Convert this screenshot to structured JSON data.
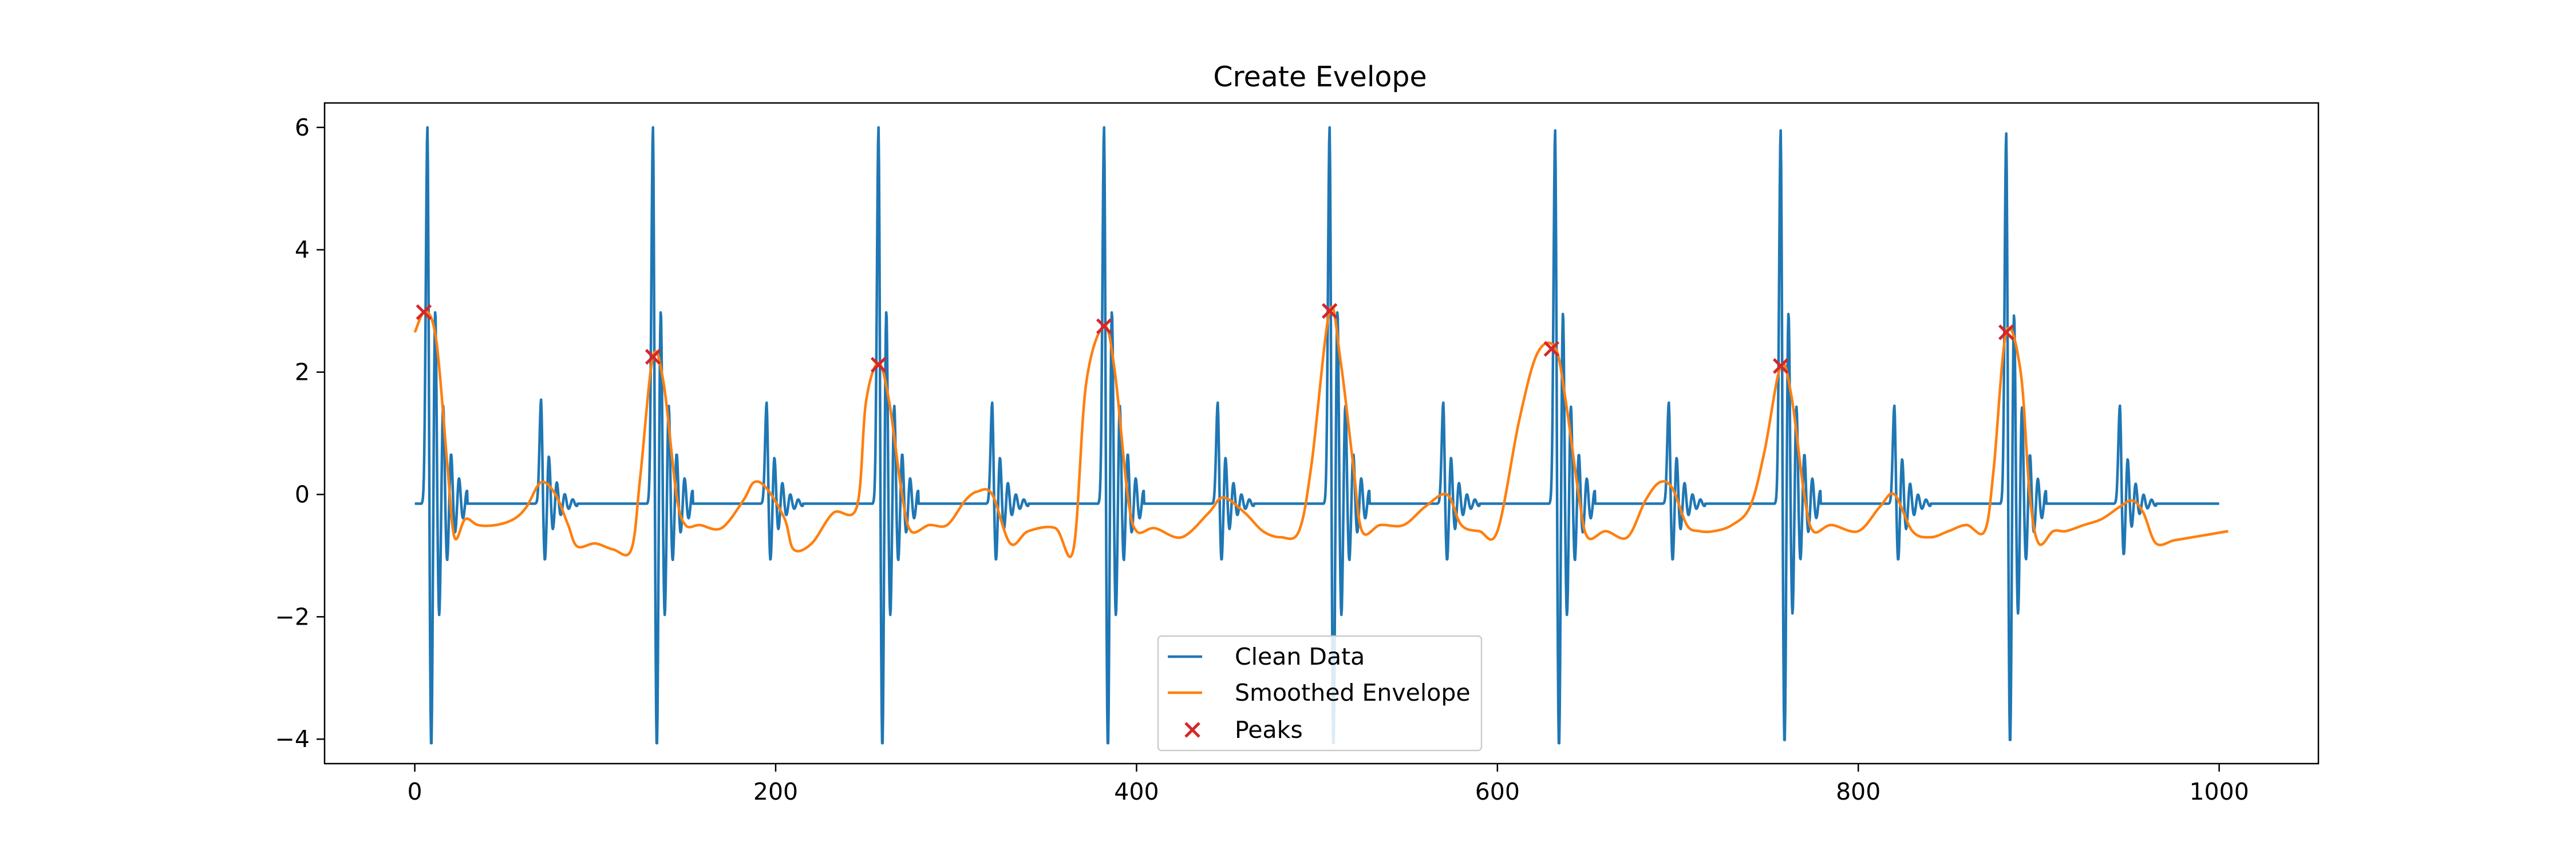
{
  "chart_data": {
    "type": "line",
    "title": "Create Evelope",
    "xlabel": "",
    "ylabel": "",
    "xlim": [
      -50,
      1055
    ],
    "ylim": [
      -4.4,
      6.4
    ],
    "xticks": [
      0,
      200,
      400,
      600,
      800,
      1000
    ],
    "yticks": [
      -4,
      -2,
      0,
      2,
      4,
      6
    ],
    "xtick_labels": [
      "0",
      "200",
      "400",
      "600",
      "800",
      "1000"
    ],
    "ytick_labels": [
      "−4",
      "−2",
      "0",
      "2",
      "4",
      "6"
    ],
    "grid": false,
    "legend_position": "lower center",
    "colors": {
      "clean": "#1f77b4",
      "envelope": "#ff7f0e",
      "peaks": "#d62728"
    },
    "clean_data": {
      "name": "Clean Data",
      "x_range": [
        0,
        1000
      ],
      "baseline": -0.15,
      "major_beats": [
        {
          "t": 7,
          "peak": 6.0,
          "trough": -3.85
        },
        {
          "t": 132,
          "peak": 6.0,
          "trough": -3.85
        },
        {
          "t": 257,
          "peak": 6.0,
          "trough": -3.85
        },
        {
          "t": 382,
          "peak": 6.0,
          "trough": -3.85
        },
        {
          "t": 507,
          "peak": 6.0,
          "trough": -3.85
        },
        {
          "t": 632,
          "peak": 5.95,
          "trough": -3.85
        },
        {
          "t": 757,
          "peak": 5.95,
          "trough": -3.8
        },
        {
          "t": 882,
          "peak": 5.9,
          "trough": -3.8
        }
      ],
      "minor_beats": [
        {
          "t": 70,
          "peak": 1.55,
          "trough": -1.2
        },
        {
          "t": 195,
          "peak": 1.5,
          "trough": -1.2
        },
        {
          "t": 320,
          "peak": 1.5,
          "trough": -1.2
        },
        {
          "t": 445,
          "peak": 1.5,
          "trough": -1.2
        },
        {
          "t": 570,
          "peak": 1.5,
          "trough": -1.2
        },
        {
          "t": 695,
          "peak": 1.5,
          "trough": -1.2
        },
        {
          "t": 820,
          "peak": 1.45,
          "trough": -1.2
        },
        {
          "t": 945,
          "peak": 1.45,
          "trough": -1.1
        }
      ]
    },
    "envelope": {
      "name": "Smoothed Envelope",
      "x": [
        0,
        6,
        12,
        18,
        22,
        28,
        35,
        45,
        55,
        62,
        70,
        78,
        85,
        90,
        100,
        110,
        120,
        125,
        132,
        138,
        145,
        150,
        158,
        170,
        182,
        188,
        195,
        205,
        210,
        220,
        232,
        245,
        250,
        257,
        263,
        270,
        275,
        285,
        295,
        305,
        312,
        320,
        330,
        340,
        355,
        365,
        372,
        382,
        388,
        395,
        400,
        410,
        425,
        440,
        448,
        460,
        470,
        480,
        490,
        497,
        507,
        513,
        520,
        525,
        535,
        548,
        560,
        572,
        580,
        590,
        600,
        612,
        622,
        632,
        638,
        645,
        650,
        660,
        672,
        682,
        690,
        697,
        705,
        712,
        720,
        730,
        740,
        748,
        757,
        763,
        770,
        775,
        785,
        800,
        812,
        820,
        830,
        840,
        850,
        860,
        870,
        875,
        882,
        890,
        895,
        900,
        908,
        915,
        925,
        935,
        945,
        952,
        958,
        965,
        975,
        985,
        995,
        1005
      ],
      "y": [
        2.65,
        3.0,
        2.5,
        0.5,
        -0.7,
        -0.4,
        -0.5,
        -0.5,
        -0.4,
        -0.2,
        0.2,
        0.0,
        -0.5,
        -0.85,
        -0.8,
        -0.9,
        -0.9,
        0.3,
        2.25,
        1.8,
        0.0,
        -0.5,
        -0.5,
        -0.55,
        -0.1,
        0.2,
        0.1,
        -0.4,
        -0.9,
        -0.8,
        -0.3,
        -0.2,
        1.5,
        2.15,
        1.5,
        0.0,
        -0.6,
        -0.5,
        -0.5,
        -0.1,
        0.05,
        0.0,
        -0.8,
        -0.6,
        -0.55,
        -0.9,
        1.8,
        2.75,
        2.0,
        0.0,
        -0.6,
        -0.55,
        -0.7,
        -0.3,
        -0.05,
        -0.3,
        -0.6,
        -0.7,
        -0.6,
        0.5,
        3.0,
        2.2,
        0.5,
        -0.6,
        -0.5,
        -0.5,
        -0.2,
        0.0,
        -0.5,
        -0.6,
        -0.6,
        1.2,
        2.3,
        2.4,
        1.5,
        0.0,
        -0.7,
        -0.6,
        -0.7,
        -0.1,
        0.2,
        0.1,
        -0.5,
        -0.6,
        -0.6,
        -0.5,
        -0.2,
        0.7,
        2.1,
        1.6,
        0.0,
        -0.6,
        -0.5,
        -0.6,
        -0.2,
        0.0,
        -0.6,
        -0.7,
        -0.6,
        -0.5,
        -0.6,
        0.4,
        2.65,
        2.0,
        0.0,
        -0.8,
        -0.6,
        -0.6,
        -0.5,
        -0.4,
        -0.2,
        -0.1,
        -0.3,
        -0.8,
        -0.75,
        -0.7,
        -0.65,
        -0.6
      ]
    },
    "peaks": {
      "name": "Peaks",
      "x": [
        5,
        132,
        257,
        382,
        507,
        630,
        757,
        882
      ],
      "y": [
        2.98,
        2.25,
        2.12,
        2.75,
        3.0,
        2.38,
        2.1,
        2.65
      ]
    }
  }
}
